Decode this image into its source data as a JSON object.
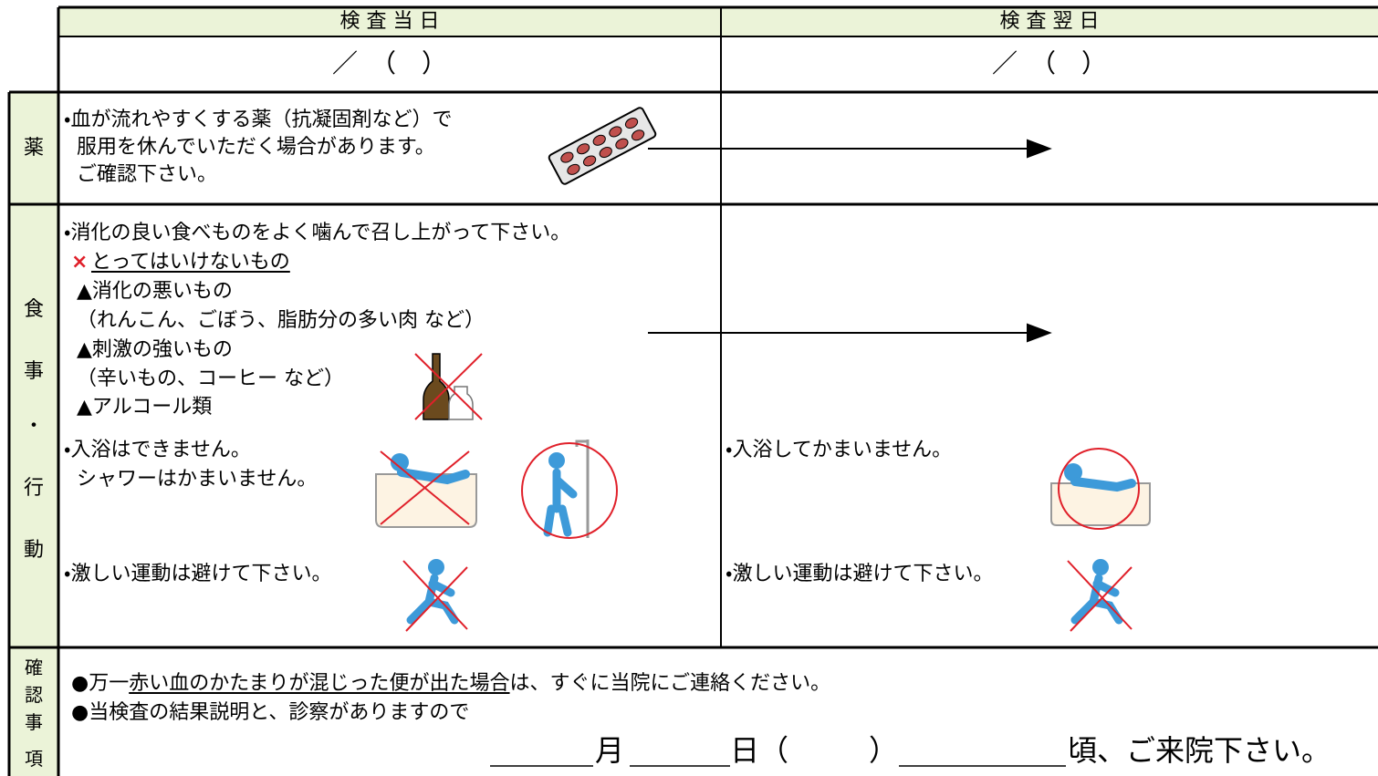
{
  "header": {
    "day_of": "検 査 当 日",
    "day_after": "検 査 翌 日"
  },
  "date_row": {
    "day_of": "／　（　）",
    "day_after": "／　（　）"
  },
  "medicine": {
    "label": "薬",
    "day_of": [
      "・血が流れやすくする薬（抗凝固剤など）で",
      "服用を休んでいただく場合があります。",
      "ご確認下さい。"
    ]
  },
  "diet_activity": {
    "label": [
      "食",
      "事",
      "・",
      "行",
      "動"
    ],
    "diet": {
      "intro": "・消化の良い食べものをよく噛んで召し上がって下さい。",
      "ng_mark": "×",
      "ng_title": "とってはいけないもの",
      "items": [
        "▲消化の悪いもの",
        "（れんこん、ごぼう、脂肪分の多い肉 など）",
        "▲刺激の強いもの",
        "（辛いもの、コーヒー など）",
        "▲アルコール類"
      ]
    },
    "bath": {
      "day_of": [
        "・入浴はできません。",
        "シャワーはかまいません。"
      ],
      "day_after": "・入浴してかまいません。"
    },
    "exercise": {
      "day_of": "・激しい運動は避けて下さい。",
      "day_after": "・激しい運動は避けて下さい。"
    }
  },
  "confirmation": {
    "label": [
      "確",
      "認",
      "事",
      "項"
    ],
    "line1": {
      "prefix": "●万一",
      "underlined": "赤い血のかたまりが混じった便が出た場合",
      "suffix": "は、すぐに当院にご連絡ください。"
    },
    "line2": "●当検査の結果説明と、診察がありますので",
    "line3": {
      "month": "月",
      "day": "日（",
      "close": "）",
      "time": "頃、ご来院下さい。"
    }
  }
}
